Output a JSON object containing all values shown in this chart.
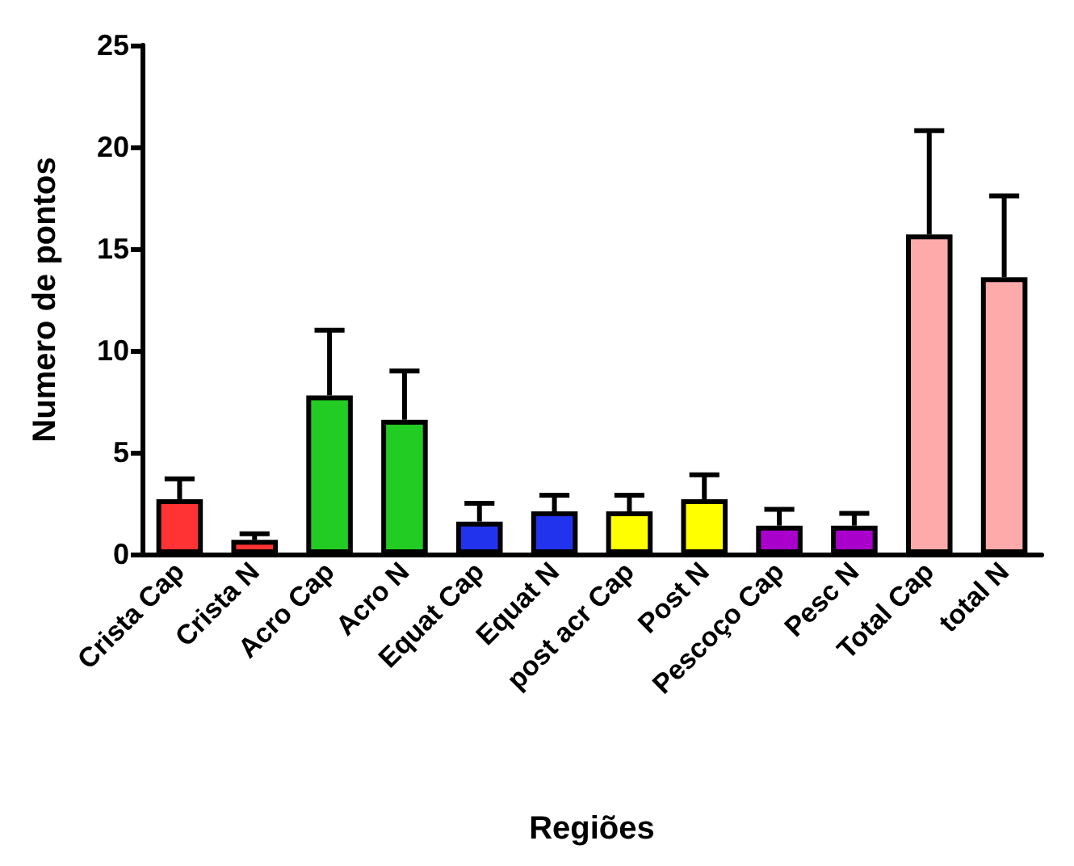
{
  "chart_data": {
    "type": "bar",
    "xlabel": "Regiões",
    "ylabel": "Numero de pontos",
    "categories": [
      "Crista Cap",
      "Crista N",
      "Acro Cap",
      "Acro N",
      "Equat Cap",
      "Equat N",
      "post acr Cap",
      "Post N",
      "Pescoço Cap",
      "Pesc N",
      "Total Cap",
      "total N"
    ],
    "values": [
      2.7,
      0.7,
      7.8,
      6.6,
      1.6,
      2.1,
      2.1,
      2.7,
      1.4,
      1.4,
      15.7,
      13.6
    ],
    "colors": [
      "#ff3333",
      "#ff3333",
      "#22cc22",
      "#22cc22",
      "#2233ee",
      "#2233ee",
      "#ffff00",
      "#ffff00",
      "#aa00cc",
      "#aa00cc",
      "#ffaaaa",
      "#ffaaaa"
    ],
    "errors": [
      [
        2.7,
        3.7
      ],
      [
        0.7,
        1.0
      ],
      [
        7.8,
        11.0
      ],
      [
        6.6,
        9.0
      ],
      [
        1.6,
        2.5
      ],
      [
        2.1,
        2.9
      ],
      [
        2.1,
        2.9
      ],
      [
        2.7,
        3.9
      ],
      [
        1.4,
        2.2
      ],
      [
        1.4,
        2.0
      ],
      [
        15.7,
        20.8
      ],
      [
        13.6,
        17.6
      ]
    ],
    "ylim": [
      0,
      25
    ],
    "yticks": [
      0,
      5,
      10,
      15,
      20,
      25
    ],
    "grid": false
  }
}
